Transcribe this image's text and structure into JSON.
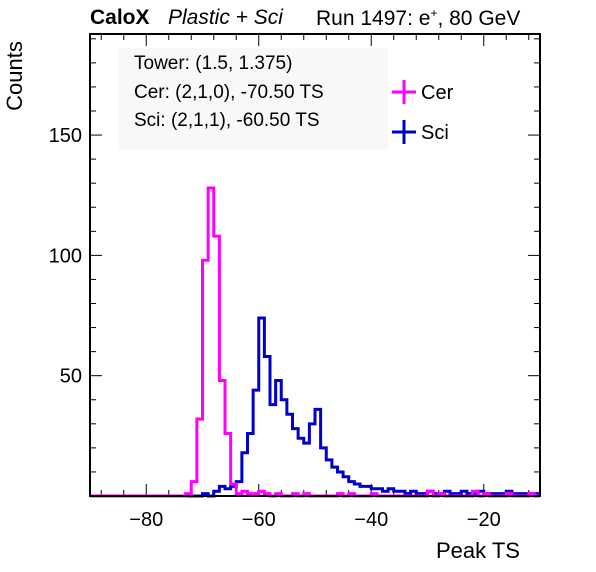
{
  "header": {
    "experiment": "CaloX",
    "detector": "Plastic + Sci",
    "run": "Run 1497: e",
    "run_sup": "+",
    "energy": ", 80 GeV"
  },
  "info": {
    "tower": "Tower: (1.5, 1.375)",
    "cer": "Cer: (2,1,0), -70.50 TS",
    "sci": "Sci: (2,1,1), -60.50 TS"
  },
  "colors": {
    "cer": "#ff00ff",
    "sci": "#0000cc"
  },
  "chart_data": {
    "type": "histogram",
    "title": "",
    "xlabel": "Peak TS",
    "ylabel": "Counts",
    "xlim": [
      -90,
      -10
    ],
    "ylim": [
      0,
      192
    ],
    "bin_width": 1,
    "x_ticks": [
      -80,
      -60,
      -40,
      -20
    ],
    "y_ticks": [
      50,
      100,
      150
    ],
    "grid": false,
    "legend_position": "top-right",
    "series": [
      {
        "name": "Cer",
        "color": "#ff00ff",
        "bins": [
          [
            -73,
            1
          ],
          [
            -72,
            6
          ],
          [
            -71,
            32
          ],
          [
            -70,
            98
          ],
          [
            -69,
            128
          ],
          [
            -68,
            108
          ],
          [
            -67,
            48
          ],
          [
            -66,
            26
          ],
          [
            -65,
            5
          ],
          [
            -64,
            1
          ],
          [
            -63,
            2
          ],
          [
            -62,
            1
          ],
          [
            -61,
            1
          ],
          [
            -60,
            2
          ],
          [
            -59,
            1
          ],
          [
            -57,
            1
          ],
          [
            -54,
            1
          ],
          [
            -52,
            1
          ],
          [
            -46,
            1
          ],
          [
            -44,
            1
          ],
          [
            -40,
            1
          ],
          [
            -30,
            2
          ],
          [
            -28,
            1
          ],
          [
            -22,
            2
          ],
          [
            -20,
            1
          ],
          [
            -16,
            1
          ],
          [
            -12,
            1
          ]
        ]
      },
      {
        "name": "Sci",
        "color": "#0000cc",
        "bins": [
          [
            -70,
            1
          ],
          [
            -68,
            2
          ],
          [
            -67,
            4
          ],
          [
            -66,
            3
          ],
          [
            -65,
            4
          ],
          [
            -64,
            6
          ],
          [
            -63,
            18
          ],
          [
            -62,
            26
          ],
          [
            -61,
            44
          ],
          [
            -60,
            74
          ],
          [
            -59,
            58
          ],
          [
            -58,
            38
          ],
          [
            -57,
            48
          ],
          [
            -56,
            40
          ],
          [
            -55,
            34
          ],
          [
            -54,
            28
          ],
          [
            -53,
            24
          ],
          [
            -52,
            22
          ],
          [
            -51,
            30
          ],
          [
            -50,
            36
          ],
          [
            -49,
            20
          ],
          [
            -48,
            15
          ],
          [
            -47,
            12
          ],
          [
            -46,
            10
          ],
          [
            -45,
            8
          ],
          [
            -44,
            6
          ],
          [
            -43,
            5
          ],
          [
            -42,
            4
          ],
          [
            -41,
            4
          ],
          [
            -40,
            3
          ],
          [
            -39,
            3
          ],
          [
            -38,
            2
          ],
          [
            -37,
            3
          ],
          [
            -36,
            2
          ],
          [
            -35,
            2
          ],
          [
            -34,
            1
          ],
          [
            -33,
            2
          ],
          [
            -32,
            1
          ],
          [
            -31,
            1
          ],
          [
            -30,
            2
          ],
          [
            -29,
            1
          ],
          [
            -28,
            1
          ],
          [
            -27,
            2
          ],
          [
            -26,
            1
          ],
          [
            -25,
            1
          ],
          [
            -24,
            2
          ],
          [
            -23,
            1
          ],
          [
            -22,
            1
          ],
          [
            -21,
            2
          ],
          [
            -20,
            1
          ],
          [
            -19,
            1
          ],
          [
            -18,
            1
          ],
          [
            -17,
            1
          ],
          [
            -16,
            2
          ],
          [
            -15,
            1
          ],
          [
            -14,
            1
          ],
          [
            -13,
            1
          ],
          [
            -12,
            1
          ],
          [
            -11,
            1
          ]
        ]
      }
    ]
  }
}
